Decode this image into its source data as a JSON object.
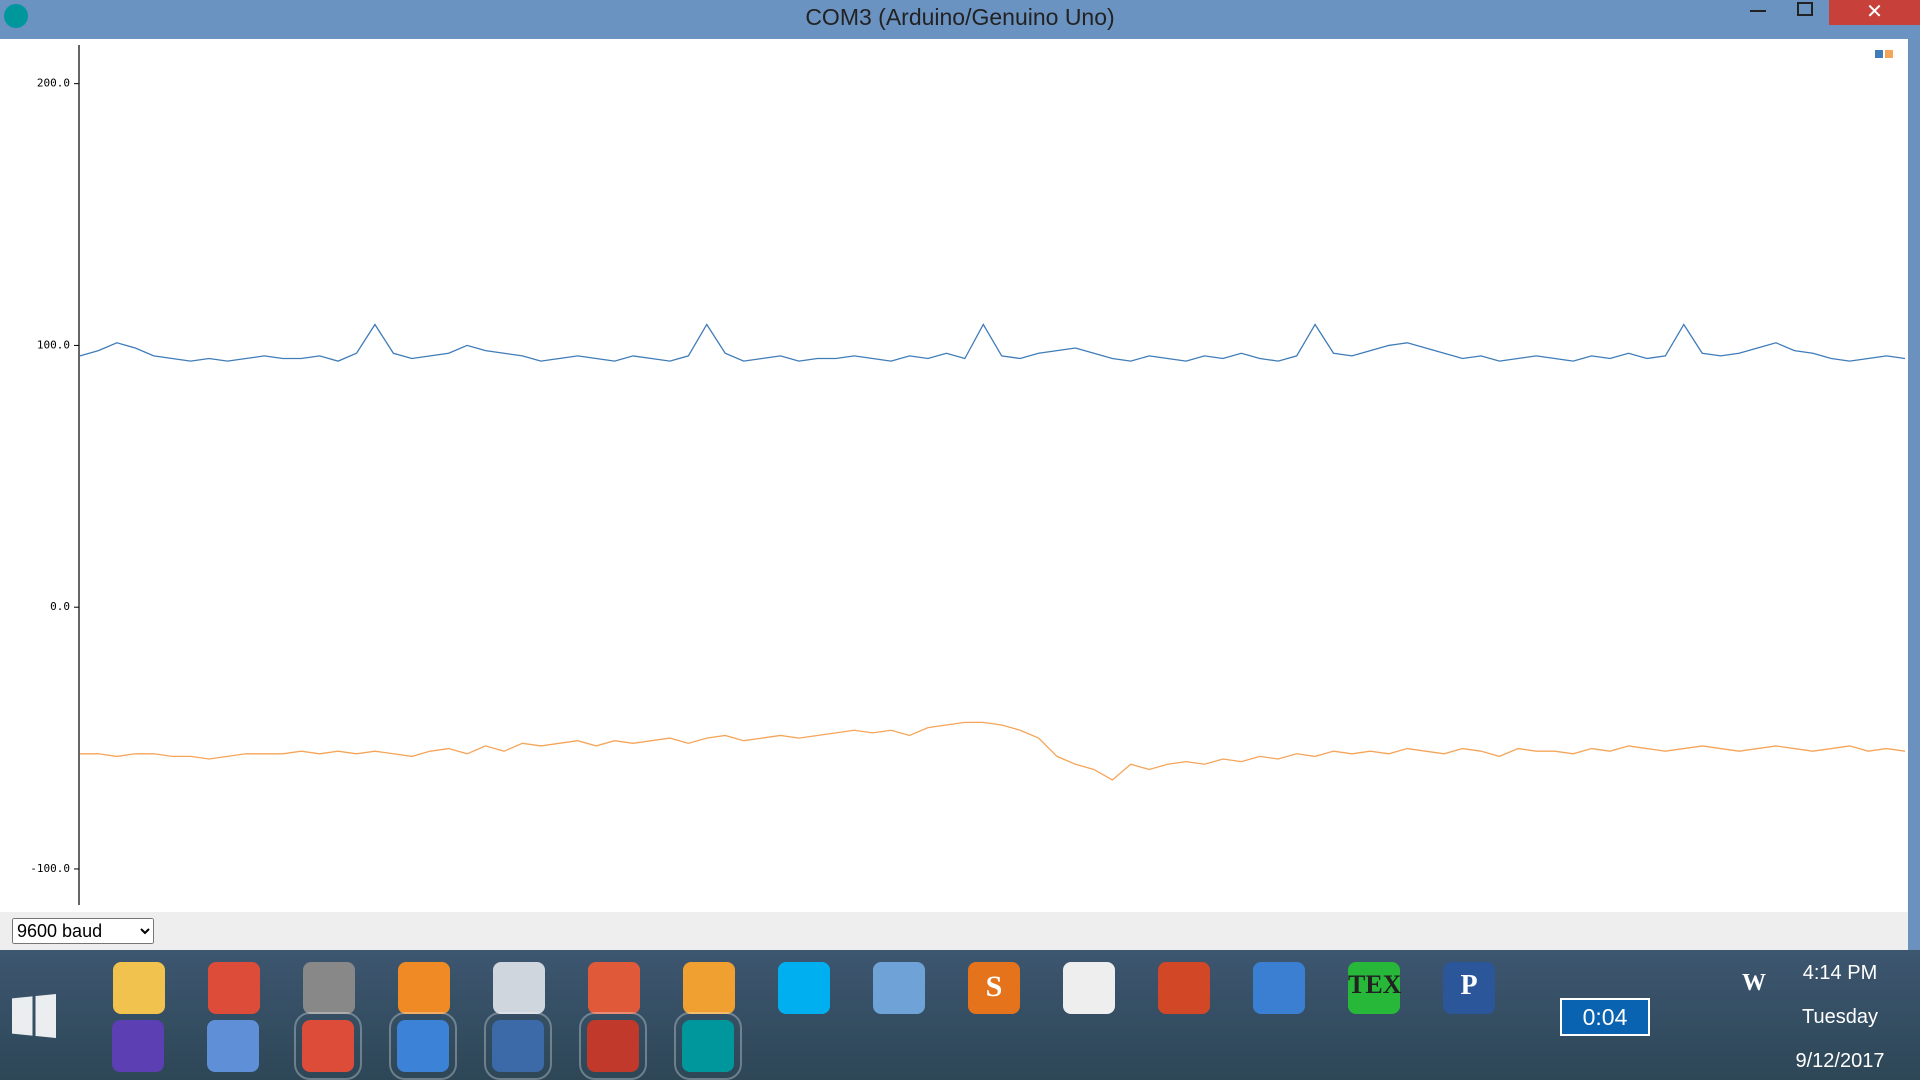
{
  "window": {
    "title": "COM3 (Arduino/Genuino Uno)"
  },
  "chart_data": {
    "type": "line",
    "ylim": [
      -113,
      214
    ],
    "yticks": [
      {
        "value": 200,
        "label": "200.0"
      },
      {
        "value": 100,
        "label": "100.0"
      },
      {
        "value": 0,
        "label": "0.0"
      },
      {
        "value": -100,
        "label": "-100.0"
      }
    ],
    "legend": "upper right",
    "series": [
      {
        "color": "#3f7cb8",
        "values": [
          96,
          98,
          101,
          99,
          96,
          95,
          94,
          95,
          94,
          95,
          96,
          95,
          95,
          96,
          94,
          97,
          108,
          97,
          95,
          96,
          97,
          100,
          98,
          97,
          96,
          94,
          95,
          96,
          95,
          94,
          96,
          95,
          94,
          96,
          108,
          97,
          94,
          95,
          96,
          94,
          95,
          95,
          96,
          95,
          94,
          96,
          95,
          97,
          95,
          108,
          96,
          95,
          97,
          98,
          99,
          97,
          95,
          94,
          96,
          95,
          94,
          96,
          95,
          97,
          95,
          94,
          96,
          108,
          97,
          96,
          98,
          100,
          101,
          99,
          97,
          95,
          96,
          94,
          95,
          96,
          95,
          94,
          96,
          95,
          97,
          95,
          96,
          108,
          97,
          96,
          97,
          99,
          101,
          98,
          97,
          95,
          94,
          95,
          96,
          95
        ]
      },
      {
        "color": "#f5a55a",
        "values": [
          -56,
          -56,
          -57,
          -56,
          -56,
          -57,
          -57,
          -58,
          -57,
          -56,
          -56,
          -56,
          -55,
          -56,
          -55,
          -56,
          -55,
          -56,
          -57,
          -55,
          -54,
          -56,
          -53,
          -55,
          -52,
          -53,
          -52,
          -51,
          -53,
          -51,
          -52,
          -51,
          -50,
          -52,
          -50,
          -49,
          -51,
          -50,
          -49,
          -50,
          -49,
          -48,
          -47,
          -48,
          -47,
          -49,
          -46,
          -45,
          -44,
          -44,
          -45,
          -47,
          -50,
          -57,
          -60,
          -62,
          -66,
          -60,
          -62,
          -60,
          -59,
          -60,
          -58,
          -59,
          -57,
          -58,
          -56,
          -57,
          -55,
          -56,
          -55,
          -56,
          -54,
          -55,
          -56,
          -54,
          -55,
          -57,
          -54,
          -55,
          -55,
          -56,
          -54,
          -55,
          -53,
          -54,
          -55,
          -54,
          -53,
          -54,
          -55,
          -54,
          -53,
          -54,
          -55,
          -54,
          -53,
          -55,
          -54,
          -55
        ]
      }
    ]
  },
  "controls": {
    "baud": "9600 baud"
  },
  "taskbar": {
    "icon_labels": [
      "S",
      "TEX",
      "P",
      "W"
    ],
    "battery": "0:04",
    "time": "4:14 PM",
    "day": "Tuesday",
    "date": "9/12/2017"
  }
}
